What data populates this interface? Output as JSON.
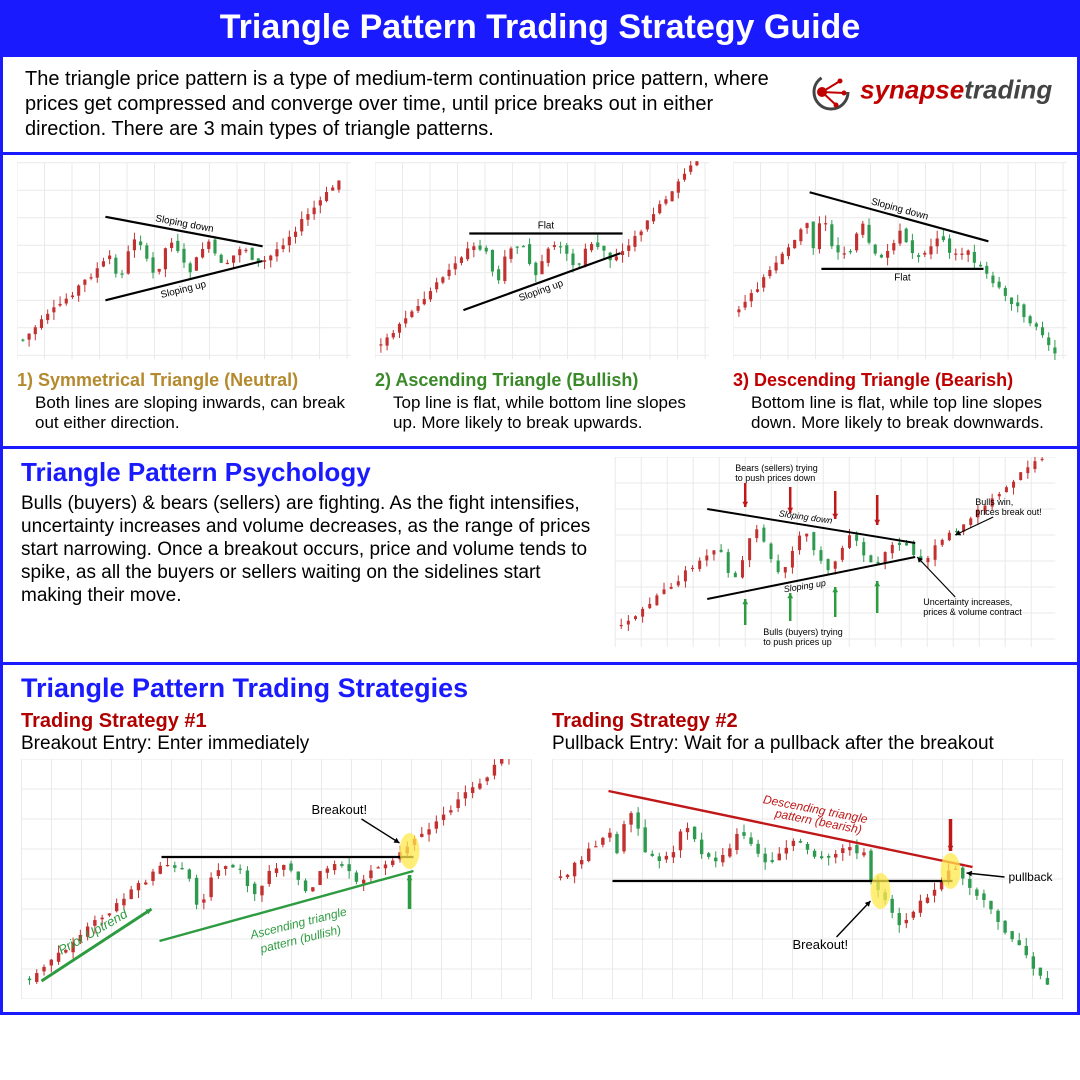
{
  "header": {
    "title": "Triangle Pattern Trading Strategy Guide"
  },
  "colors": {
    "brand_blue": "#1a1aff",
    "white": "#ffffff",
    "black": "#000000",
    "symmetrical": "#b58a2e",
    "ascending": "#3a8a2a",
    "descending": "#c00000",
    "strategy_red": "#b00000",
    "candle_up": "#2e9a4f",
    "candle_down": "#c23030",
    "grid": "#e9e9e9",
    "anno_green": "#2d9b3f",
    "anno_red": "#c01818",
    "highlight": "#ffe84a",
    "logo_red": "#c00000",
    "logo_grey": "#444444"
  },
  "intro": {
    "text": "The triangle price pattern is a type of medium-term continuation price pattern, where prices get compressed and converge over time, until price breaks out in either direction. There are 3 main types of triangle patterns.",
    "logo": {
      "left": "synapse",
      "right": "trading"
    }
  },
  "types": [
    {
      "title": "1) Symmetrical Triangle (Neutral)",
      "title_color": "#b58a2e",
      "desc": "Both lines are sloping inwards, can break out either direction.",
      "pattern": "symmetrical",
      "top_label": "Sloping down",
      "bottom_label": "Sloping up"
    },
    {
      "title": "2) Ascending Triangle (Bullish)",
      "title_color": "#3a8a2a",
      "desc": "Top line is flat, while bottom line slopes up. More likely to break upwards.",
      "pattern": "ascending",
      "top_label": "Flat",
      "bottom_label": "Sloping up"
    },
    {
      "title": "3) Descending Triangle (Bearish)",
      "title_color": "#c00000",
      "desc": "Bottom line is flat, while top line slopes down. More likely to break downwards.",
      "pattern": "descending",
      "top_label": "Sloping down",
      "bottom_label": "Flat"
    }
  ],
  "psychology": {
    "title": "Triangle Pattern Psychology",
    "text": "Bulls (buyers) & bears (sellers) are fighting. As the fight intensifies, uncertainty increases and volume decreases, as the range of prices start narrowing. Once a breakout occurs, price and volume tends to spike, as all the buyers or sellers waiting on the sidelines start making their move.",
    "labels": {
      "bears": "Bears (sellers) trying to push prices down",
      "bulls": "Bulls (buyers) trying to push prices up",
      "top_line": "Sloping down",
      "bottom_line": "Sloping up",
      "uncertainty": "Uncertainty increases, prices & volume contract",
      "breakout": "Bulls win, prices break out!"
    }
  },
  "strategies": {
    "title": "Triangle Pattern Trading Strategies",
    "items": [
      {
        "name": "Trading Strategy #1",
        "sub": "Breakout Entry: Enter immediately",
        "labels": {
          "prior": "Prior Uptrend",
          "pattern": "Ascending triangle pattern (bullish)",
          "breakout": "Breakout!"
        }
      },
      {
        "name": "Trading Strategy #2",
        "sub": "Pullback Entry: Wait for a pullback after the breakout",
        "labels": {
          "pattern": "Descending triangle pattern (bearish)",
          "breakout": "Breakout!",
          "pullback": "pullback"
        }
      }
    ]
  },
  "chart_style": {
    "candle_width": 3.2,
    "wick_width": 1,
    "line_width": 2.2,
    "label_fontsize": 10
  }
}
